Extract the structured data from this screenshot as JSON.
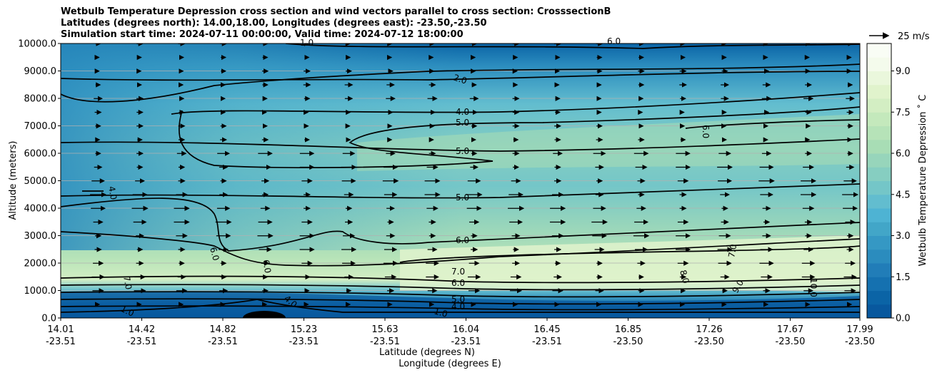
{
  "chart_data": {
    "type": "heatmap",
    "title_lines": [
      "Wetbulb Temperature Depression cross section and wind vectors parallel to cross section: CrosssectionB",
      "Latitudes (degrees north): 14.00,18.00, Longitudes (degrees east): -23.50,-23.50",
      "Simulation start time: 2024-07-11 00:00:00, Valid time: 2024-07-12 18:00:00"
    ],
    "ylabel": "Altitude (meters)",
    "xlabel_lat": "Latitude (degrees N)",
    "xlabel_lon": "Longitude (degrees E)",
    "ylim": [
      0,
      10000
    ],
    "y_ticks": [
      "0.0",
      "1000.0",
      "2000.0",
      "3000.0",
      "4000.0",
      "5000.0",
      "6000.0",
      "7000.0",
      "8000.0",
      "9000.0",
      "10000.0"
    ],
    "x_ticks": [
      {
        "lat": "14.01",
        "lon": "-23.51"
      },
      {
        "lat": "14.42",
        "lon": "-23.51"
      },
      {
        "lat": "14.82",
        "lon": "-23.51"
      },
      {
        "lat": "15.23",
        "lon": "-23.51"
      },
      {
        "lat": "15.63",
        "lon": "-23.51"
      },
      {
        "lat": "16.04",
        "lon": "-23.51"
      },
      {
        "lat": "16.45",
        "lon": "-23.51"
      },
      {
        "lat": "16.85",
        "lon": "-23.50"
      },
      {
        "lat": "17.26",
        "lon": "-23.50"
      },
      {
        "lat": "17.67",
        "lon": "-23.50"
      },
      {
        "lat": "17.99",
        "lon": "-23.50"
      }
    ],
    "colorbar": {
      "label": "Wetbulb Temperature Depression ˚ C",
      "range": [
        0,
        10
      ],
      "ticks": [
        "0.0",
        "1.5",
        "3.0",
        "4.5",
        "6.0",
        "7.5",
        "9.0"
      ],
      "colors": [
        "#08589e",
        "#0b64a6",
        "#1571b0",
        "#217db8",
        "#2b8cbe",
        "#3598c4",
        "#42a6c8",
        "#4eb3d3",
        "#62bdcf",
        "#74c6c8",
        "#86cec1",
        "#97d5bb",
        "#a8ddb5",
        "#b6e3b8",
        "#c4e9bc",
        "#d3eec3",
        "#e0f3cc",
        "#eaf7dc",
        "#f4fbec",
        "#f9fdf5"
      ]
    },
    "wind_reference": {
      "label": "25 m/s",
      "speed_ms": 25
    },
    "contour_labels": [
      "1.0",
      "2.0",
      "4.0",
      "5.0",
      "5.0",
      "5.0",
      "6.0",
      "6.0",
      "6.0",
      "7.0",
      "6.0",
      "5.0",
      "4.0",
      "8.0",
      "9.0",
      "10.0",
      "7.0",
      "6.0",
      "4.0",
      "7.0",
      "1.0",
      "4.0",
      "1.0",
      "6.0"
    ],
    "grid": "horizontal"
  }
}
